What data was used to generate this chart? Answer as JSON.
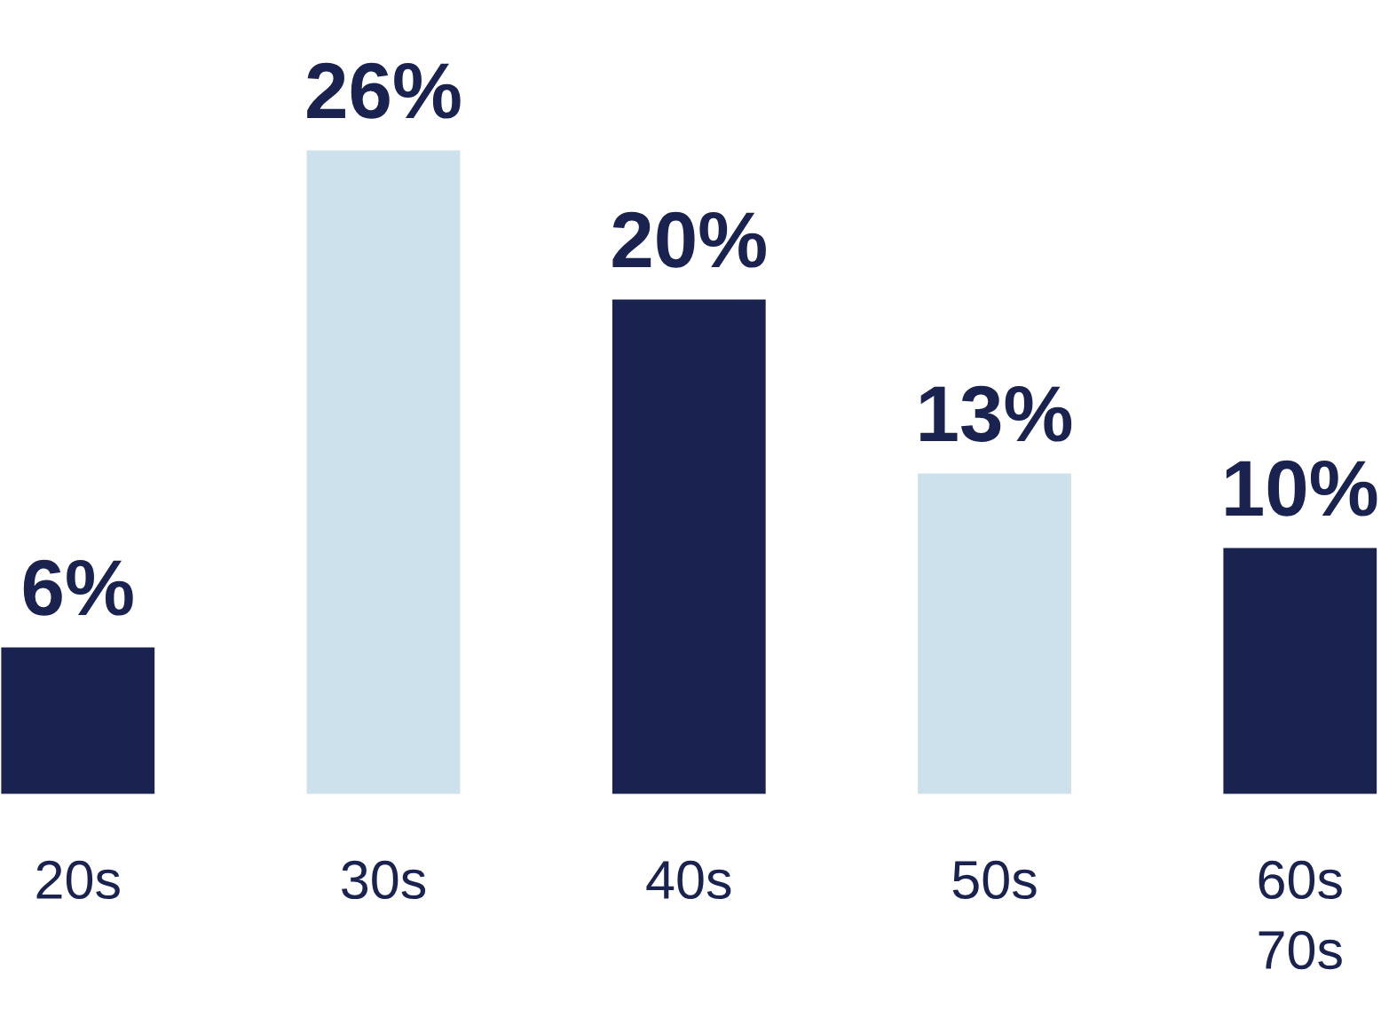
{
  "chart_data": {
    "type": "bar",
    "categories": [
      "20s",
      "30s",
      "40s",
      "50s",
      "60s\n70s"
    ],
    "values": [
      6,
      26,
      20,
      13,
      10
    ],
    "colors": [
      "#1a2350",
      "#cce1ec",
      "#1a2350",
      "#cce1ec",
      "#1a2350"
    ],
    "value_labels": [
      "6%",
      "26%",
      "20%",
      "13%",
      "10%"
    ],
    "grid": false,
    "legend": false
  }
}
